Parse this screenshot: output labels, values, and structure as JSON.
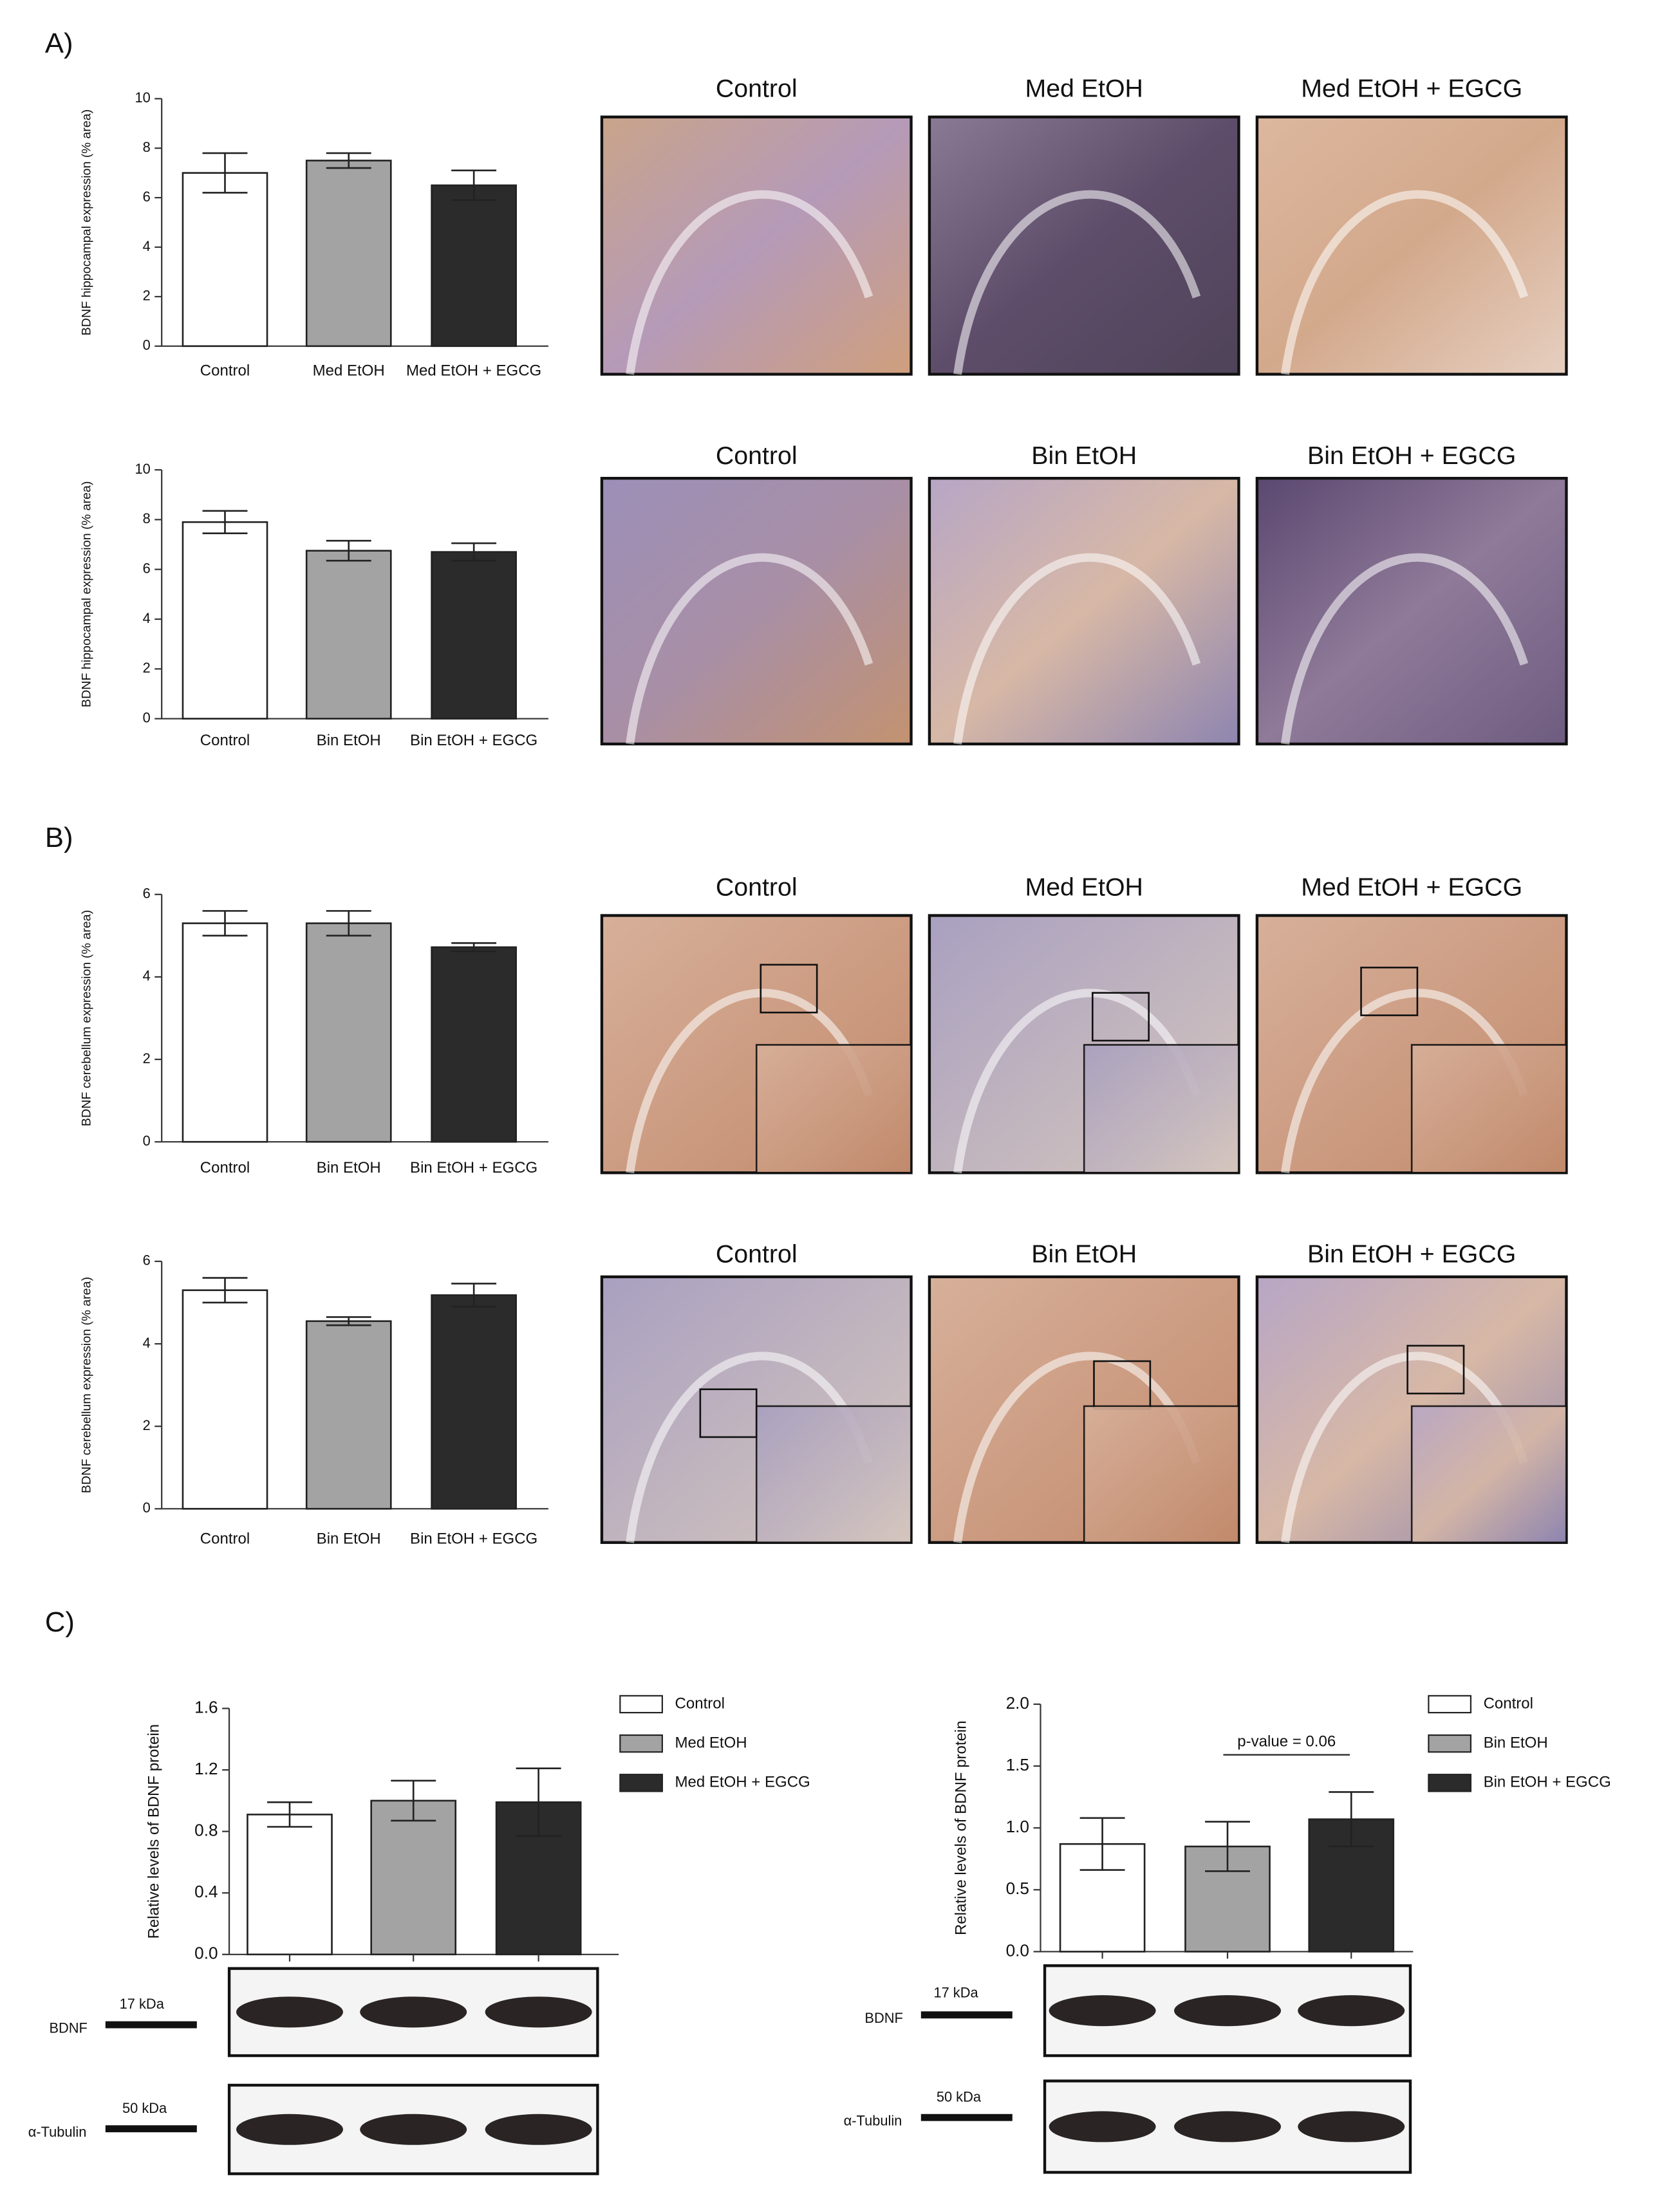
{
  "panels": [
    "A)",
    "B)",
    "C)"
  ],
  "chart_data": [
    {
      "type": "bar",
      "ylabel": "BDNF hippocampal expression (% area)",
      "categories": [
        "Control",
        "Med EtOH",
        "Med EtOH + EGCG"
      ],
      "values": [
        7.0,
        7.5,
        6.5
      ],
      "errors": [
        0.8,
        0.3,
        0.6
      ],
      "colors": [
        "#ffffff",
        "#a3a3a3",
        "#2b2b2b"
      ],
      "ylim": [
        0,
        10
      ],
      "yticks": [
        0,
        2,
        4,
        6,
        8,
        10
      ]
    },
    {
      "type": "bar",
      "ylabel": "BDNF hippocampal expression (% area)",
      "categories": [
        "Control",
        "Bin EtOH",
        "Bin EtOH + EGCG"
      ],
      "values": [
        7.9,
        6.75,
        6.7
      ],
      "errors": [
        0.45,
        0.4,
        0.35
      ],
      "colors": [
        "#ffffff",
        "#a3a3a3",
        "#2b2b2b"
      ],
      "ylim": [
        0,
        10
      ],
      "yticks": [
        0,
        2,
        4,
        6,
        8,
        10
      ]
    },
    {
      "type": "bar",
      "ylabel": "BDNF cerebellum expression (% area)",
      "categories": [
        "Control",
        "Bin EtOH",
        "Bin EtOH + EGCG"
      ],
      "values": [
        5.3,
        5.3,
        4.72
      ],
      "errors": [
        0.3,
        0.3,
        0.1
      ],
      "colors": [
        "#ffffff",
        "#a3a3a3",
        "#2b2b2b"
      ],
      "ylim": [
        0,
        6
      ],
      "yticks": [
        0,
        2,
        4,
        6
      ]
    },
    {
      "type": "bar",
      "ylabel": "BDNF cerebellum expression (% area)",
      "categories": [
        "Control",
        "Bin EtOH",
        "Bin EtOH + EGCG"
      ],
      "values": [
        5.3,
        4.55,
        5.18
      ],
      "errors": [
        0.3,
        0.1,
        0.28
      ],
      "colors": [
        "#ffffff",
        "#a3a3a3",
        "#2b2b2b"
      ],
      "ylim": [
        0,
        6
      ],
      "yticks": [
        0,
        2,
        4,
        6
      ]
    },
    {
      "type": "bar",
      "ylabel": "Relative levels of BDNF protein",
      "categories": [
        null
      ],
      "series": [
        {
          "name": "Control",
          "color": "#ffffff",
          "values": [
            0.91
          ],
          "errors": [
            0.08
          ]
        },
        {
          "name": "Med EtOH",
          "color": "#a3a3a3",
          "values": [
            1.0
          ],
          "errors": [
            0.13
          ]
        },
        {
          "name": "Med EtOH + EGCG",
          "color": "#2b2b2b",
          "values": [
            0.99
          ],
          "errors": [
            0.22
          ]
        }
      ],
      "ylim": [
        0,
        1.6
      ],
      "yticks": [
        {
          "value": 0,
          "label": "0.0"
        },
        0.4,
        0.8,
        1.2,
        1.6
      ]
    },
    {
      "type": "bar",
      "ylabel": "Relative levels of BDNF protein",
      "categories": [
        null
      ],
      "series": [
        {
          "name": "Control",
          "color": "#ffffff",
          "values": [
            0.87
          ],
          "errors": [
            0.21
          ]
        },
        {
          "name": "Bin EtOH",
          "color": "#a3a3a3",
          "values": [
            0.85
          ],
          "errors": [
            0.2
          ]
        },
        {
          "name": "Bin EtOH + EGCG",
          "color": "#2b2b2b",
          "values": [
            1.07
          ],
          "errors": [
            0.22
          ]
        }
      ],
      "ylim": [
        0,
        2.0
      ],
      "yticks": [
        {
          "value": 0,
          "label": "0.0"
        },
        0.5,
        {
          "value": 1,
          "label": "1.0"
        },
        1.5,
        {
          "value": 2,
          "label": "2.0"
        }
      ],
      "annotation": "p-value = 0.06"
    }
  ],
  "micrographs": [
    "Control",
    "Med EtOH",
    "Med EtOH + EGCG",
    "Control",
    "Bin EtOH",
    "Bin EtOH + EGCG",
    "Control",
    "Med EtOH",
    "Med EtOH + EGCG",
    "Control",
    "Bin EtOH",
    "Bin EtOH + EGCG"
  ],
  "blots": [
    {
      "marker": "17 kDa",
      "protein": "BDNF"
    },
    {
      "marker": "50 kDa",
      "protein": "α-Tubulin"
    },
    {
      "marker": "17 kDa",
      "protein": "BDNF"
    },
    {
      "marker": "50 kDa",
      "protein": "α-Tubulin"
    }
  ]
}
